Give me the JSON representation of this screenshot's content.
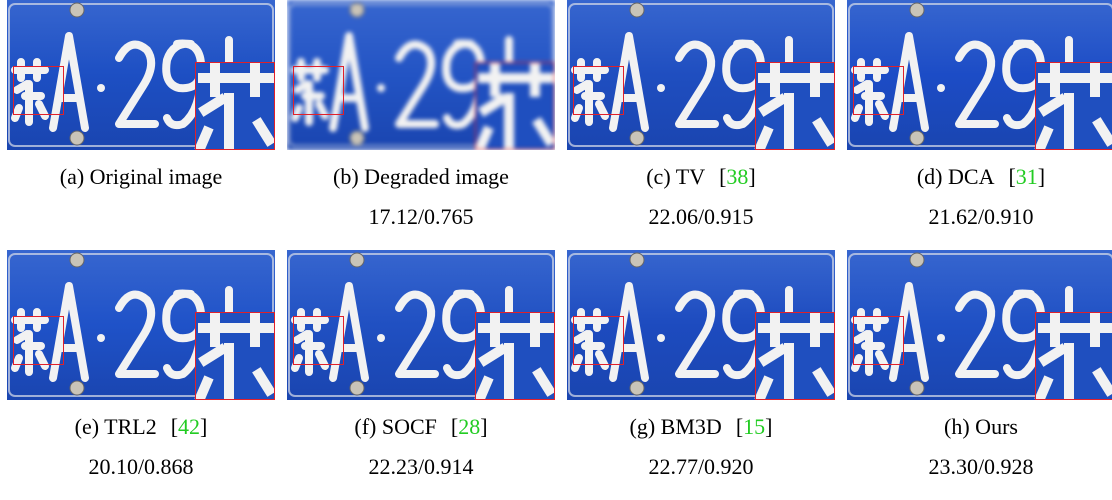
{
  "panels": [
    {
      "caption": "(a) Original image"
    },
    {
      "caption": "(b) Degraded image",
      "metric": "17.12/0.765"
    },
    {
      "caption": "(c) TV",
      "citation": "[38]",
      "metric": "22.06/0.915"
    },
    {
      "caption": "(d) DCA",
      "citation": "[31]",
      "metric": "21.62/0.910"
    },
    {
      "caption": "(e) TRL2",
      "citation": "[42]",
      "metric": "20.10/0.868"
    },
    {
      "caption": "(f) SOCF",
      "citation": "[28]",
      "metric": "22.23/0.914"
    },
    {
      "caption": "(g) BM3D",
      "citation": "[15]",
      "metric": "22.77/0.920"
    },
    {
      "caption": "(h) Ours",
      "metric": "23.30/0.928"
    }
  ]
}
